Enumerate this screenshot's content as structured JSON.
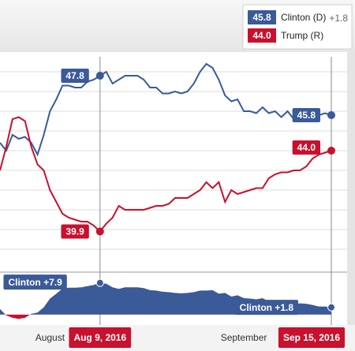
{
  "chart_data": {
    "type": "line",
    "categories": [
      null,
      null,
      null,
      null,
      null,
      null,
      null,
      null,
      "August",
      null,
      null,
      null,
      null,
      null,
      null,
      null,
      "Aug 9, 2016",
      null,
      null,
      null,
      null,
      null,
      null,
      null,
      null,
      null,
      null,
      null,
      null,
      null,
      null,
      null,
      null,
      null,
      null,
      null,
      null,
      null,
      null,
      "September",
      null,
      null,
      null,
      null,
      null,
      null,
      null,
      null,
      null,
      null,
      null,
      null,
      null,
      "Sep 15, 2016"
    ],
    "crosshairs": [
      "Aug 9, 2016",
      "Sep 15, 2016"
    ],
    "ylim": [
      38,
      49
    ],
    "yticks": [
      39,
      40,
      41,
      42,
      43,
      44,
      45,
      46,
      47,
      48
    ],
    "grid": true,
    "series": [
      {
        "name": "Clinton (D)",
        "color": "#3a5a98",
        "legend_change": "+1.8",
        "values": [
          44.4,
          44.0,
          44.8,
          44.6,
          44.7,
          44.4,
          43.8,
          44.8,
          46.0,
          46.6,
          47.3,
          47.3,
          47.2,
          47.2,
          47.5,
          47.6,
          47.8,
          48.0,
          47.4,
          47.6,
          47.8,
          47.8,
          47.8,
          47.6,
          47.2,
          47.2,
          46.9,
          46.9,
          47.0,
          46.9,
          47.0,
          47.4,
          48.0,
          48.4,
          48.2,
          47.6,
          46.8,
          46.5,
          46.6,
          46.0,
          46.0,
          45.9,
          46.2,
          45.9,
          46.0,
          45.7,
          46.0,
          45.6,
          45.8,
          45.9,
          46.0,
          45.8,
          45.9,
          45.8
        ],
        "value_labels": [
          null,
          null,
          null,
          null,
          null,
          null,
          null,
          null,
          null,
          null,
          null,
          null,
          null,
          null,
          null,
          null,
          "47.8",
          null,
          null,
          null,
          null,
          null,
          null,
          null,
          null,
          null,
          null,
          null,
          null,
          null,
          null,
          null,
          null,
          null,
          null,
          null,
          null,
          null,
          null,
          null,
          null,
          null,
          null,
          null,
          null,
          null,
          null,
          null,
          null,
          null,
          null,
          null,
          null,
          "45.8"
        ]
      },
      {
        "name": "Trump (R)",
        "color": "#c9102e",
        "values": [
          43.0,
          44.2,
          45.6,
          45.7,
          45.5,
          44.2,
          43.3,
          43.0,
          42.0,
          41.4,
          40.8,
          40.6,
          40.5,
          40.4,
          40.4,
          40.2,
          39.9,
          40.3,
          40.6,
          41.2,
          41.0,
          41.0,
          41.0,
          41.0,
          41.1,
          41.2,
          41.2,
          41.3,
          41.6,
          41.6,
          41.6,
          41.8,
          42.0,
          42.4,
          42.1,
          42.4,
          41.4,
          42.0,
          41.8,
          41.9,
          42.0,
          42.1,
          42.1,
          42.6,
          42.8,
          42.9,
          42.9,
          43.0,
          43.0,
          43.2,
          43.6,
          43.8,
          43.9,
          44.0
        ],
        "value_labels": [
          null,
          null,
          null,
          null,
          null,
          null,
          null,
          null,
          null,
          null,
          null,
          null,
          null,
          null,
          null,
          null,
          "39.9",
          null,
          null,
          null,
          null,
          null,
          null,
          null,
          null,
          null,
          null,
          null,
          null,
          null,
          null,
          null,
          null,
          null,
          null,
          null,
          null,
          null,
          null,
          null,
          null,
          null,
          null,
          null,
          null,
          null,
          null,
          null,
          null,
          null,
          null,
          null,
          null,
          "44.0"
        ]
      }
    ],
    "spread": {
      "type": "area",
      "color": "#3a5a98",
      "negative_color": "#c9102e",
      "ylim": [
        -2,
        10
      ],
      "values": [
        1.4,
        -0.2,
        -0.8,
        -1.1,
        -0.8,
        0.2,
        0.5,
        1.8,
        4.0,
        5.2,
        6.5,
        6.7,
        6.7,
        6.8,
        7.1,
        7.4,
        7.9,
        7.7,
        6.8,
        6.4,
        6.8,
        6.8,
        6.8,
        6.6,
        6.1,
        6.0,
        5.7,
        5.6,
        5.4,
        5.3,
        5.4,
        5.6,
        6.0,
        6.0,
        6.1,
        5.2,
        5.4,
        4.5,
        4.8,
        4.1,
        4.0,
        3.8,
        4.1,
        3.3,
        3.2,
        2.8,
        3.1,
        2.6,
        2.8,
        2.7,
        2.4,
        2.0,
        2.0,
        1.8
      ],
      "value_labels": [
        null,
        null,
        null,
        null,
        null,
        null,
        null,
        null,
        null,
        null,
        null,
        null,
        null,
        null,
        null,
        null,
        "Clinton +7.9",
        null,
        null,
        null,
        null,
        null,
        null,
        null,
        null,
        null,
        null,
        null,
        null,
        null,
        null,
        null,
        null,
        null,
        null,
        null,
        null,
        null,
        null,
        null,
        null,
        null,
        null,
        null,
        null,
        null,
        null,
        null,
        null,
        null,
        null,
        null,
        null,
        "Clinton +1.8"
      ]
    }
  }
}
